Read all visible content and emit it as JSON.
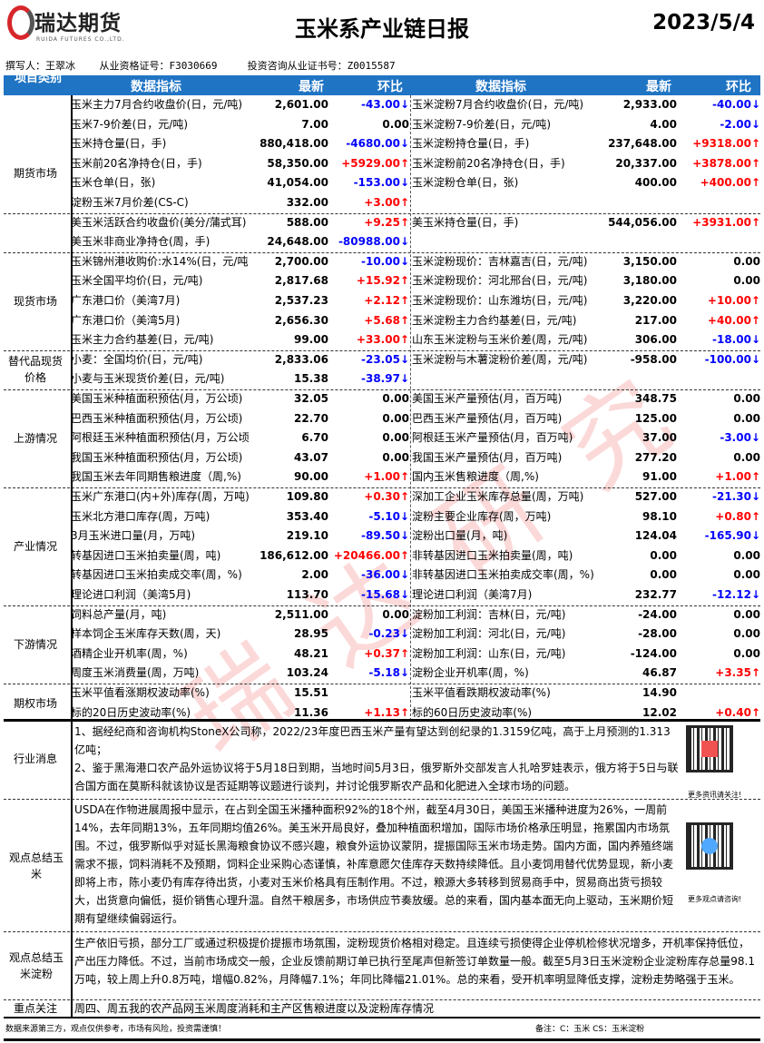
{
  "header": {
    "logo_cn": "瑞达期货",
    "logo_en": "RUIDA FUTURES CO.,LTD.",
    "title": "玉米系产业链日报",
    "date": "2023/5/4"
  },
  "author_line": "撰写人：王翠冰    从业资格证号：F3030669     投资咨询从业证书号：Z0015587",
  "table_header": {
    "category": "项目类别",
    "indicator": "数据指标",
    "latest": "最新",
    "change": "环比"
  },
  "colors": {
    "header_bg": "#1f74c4",
    "up": "#ff0000",
    "down": "#0000ff"
  },
  "sections": [
    {
      "category": "期货市场",
      "rows": [
        [
          "玉米主力7月合约收盘价(日，元/吨)",
          "2,601.00",
          "-43.00↓",
          "玉米淀粉7月合约收盘价(日，元/吨)",
          "2,933.00",
          "-40.00↓"
        ],
        [
          "玉米7-9价差(日，元/吨)",
          "7.00",
          "0.00",
          "玉米淀粉7-9价差(日，元/吨)",
          "4.00",
          "-2.00↓"
        ],
        [
          "玉米持仓量(日，手)",
          "880,418.00",
          "-4680.00↓",
          "玉米淀粉持仓量(日，手)",
          "237,648.00",
          "+9318.00↑"
        ],
        [
          "玉米前20名净持仓(日，手)",
          "58,350.00",
          "+5929.00↑",
          "玉米淀粉前20名净持仓(日，手)",
          "20,337.00",
          "+3878.00↑"
        ],
        [
          "玉米仓单(日，张)",
          "41,054.00",
          "-153.00↓",
          "玉米淀粉仓单(日，张)",
          "400.00",
          "+400.00↑"
        ],
        [
          "淀粉玉米7月价差(CS-C)",
          "332.00",
          "+3.00↑",
          "",
          "",
          ""
        ],
        [
          "美玉米活跃合约收盘价(美分/蒲式耳)",
          "588.00",
          "+9.25↑",
          "美玉米持仓量(日，手)",
          "544,056.00",
          "+3931.00↑"
        ],
        [
          "美玉米非商业净持仓(周，手)",
          "24,648.00",
          "-80988.00↓",
          "",
          "",
          ""
        ]
      ]
    },
    {
      "category": "现货市场",
      "rows": [
        [
          "玉米锦州港收购价:水14%(日，元/吨",
          "2,700.00",
          "-10.00↓",
          "玉米淀粉现价：吉林嘉吉(日，元/吨)",
          "3,150.00",
          "0.00"
        ],
        [
          "玉米全国平均价(日，元/吨)",
          "2,817.68",
          "+15.92↑",
          "玉米淀粉现价：河北邢台(日，元/吨)",
          "3,180.00",
          "0.00"
        ],
        [
          "广东港口价（美湾7月)",
          "2,537.23",
          "+2.12↑",
          "玉米淀粉现价：山东潍坊(日，元/吨)",
          "3,220.00",
          "+10.00↑"
        ],
        [
          "广东港口价（美湾5月)",
          "2,656.30",
          "+5.68↑",
          "玉米淀粉主力合约基差(日，元/吨)",
          "217.00",
          "+40.00↑"
        ],
        [
          "玉米主力合约基差(日，元/吨)",
          "99.00",
          "+33.00↑",
          "山东玉米淀粉与玉米价差(周，元/吨)",
          "306.00",
          "-18.00↓"
        ]
      ]
    },
    {
      "category": "替代品现货价格",
      "rows": [
        [
          "小麦：全国均价(日，元/吨)",
          "2,833.06",
          "-23.05↓",
          "玉米淀粉与木薯淀粉价差(周，元/吨)",
          "-958.00",
          "-100.00↓"
        ],
        [
          "小麦与玉米现货价差(日，元/吨)",
          "15.38",
          "-38.97↓",
          "",
          "",
          ""
        ]
      ]
    },
    {
      "category": "上游情况",
      "rows": [
        [
          "美国玉米种植面积预估(月，万公顷)",
          "32.05",
          "0.00",
          "美国玉米产量预估(月，百万吨)",
          "348.75",
          "0.00"
        ],
        [
          "巴西玉米种植面积预估(月，万公顷)",
          "22.70",
          "0.00",
          "巴西玉米产量预估(月，百万吨)",
          "125.00",
          "0.00"
        ],
        [
          "阿根廷玉米种植面积预估(月，万公顷",
          "6.70",
          "0.00",
          "阿根廷玉米产量预估(月，百万吨)",
          "37.00",
          "-3.00↓"
        ],
        [
          "我国玉米种植面积预估(月，万公顷)",
          "43.07",
          "0.00",
          "我国玉米产量预估(月，百万吨)",
          "277.20",
          "0.00"
        ],
        [
          "我国玉米去年同期售粮进度（周,%)",
          "90.00",
          "+1.00↑",
          "国内玉米售粮进度（周,%)",
          "91.00",
          "+1.00↑"
        ]
      ]
    },
    {
      "category": "产业情况",
      "rows": [
        [
          "玉米广东港口(内+外)库存(周，万吨)",
          "109.80",
          "+0.30↑",
          "深加工企业玉米库存总量(周，万吨)",
          "527.00",
          "-21.30↓"
        ],
        [
          "玉米北方港口库存(周，万吨)",
          "353.40",
          "-5.10↓",
          "淀粉主要企业库存(周，万吨)",
          "98.10",
          "+0.80↑"
        ],
        [
          "3月玉米进口量(月，万吨)",
          "219.10",
          "-89.50↓",
          "淀粉出口量(月，吨)",
          "124.04",
          "-165.90↓"
        ],
        [
          "转基因进口玉米拍卖量(周，吨)",
          "186,612.00",
          "+20466.00↑",
          "非转基因进口玉米拍卖量(周，吨)",
          "0.00",
          "0.00"
        ],
        [
          "转基因进口玉米拍卖成交率(周，%)",
          "2.00",
          "-36.00↓",
          "非转基因进口玉米拍卖成交率(周，%)",
          "0.00",
          "0.00"
        ],
        [
          "理论进口利润（美湾5月)",
          "113.70",
          "-15.68↓",
          "理论进口利润（美湾7月)",
          "232.77",
          "-12.12↓"
        ]
      ]
    },
    {
      "category": "下游情况",
      "rows": [
        [
          "饲料总产量(月，吨)",
          "2,511.00",
          "0.00",
          "淀粉加工利润：吉林(日，元/吨)",
          "-24.00",
          "0.00"
        ],
        [
          "样本饲企玉米库存天数(周，天)",
          "28.95",
          "-0.23↓",
          "淀粉加工利润：河北(日，元/吨)",
          "-28.00",
          "0.00"
        ],
        [
          "酒精企业开机率(周，%)",
          "48.21",
          "+0.37↑",
          "淀粉加工利润：山东(日，元/吨)",
          "-124.00",
          "0.00"
        ],
        [
          "周度玉米消费量(周，万吨)",
          "103.24",
          "-5.18↓",
          "淀粉企业开机率(周，%)",
          "46.87",
          "+3.35↑"
        ]
      ]
    },
    {
      "category": "期权市场",
      "rows": [
        [
          "玉米平值看涨期权波动率(%)",
          "15.51",
          "",
          "玉米平值看跌期权波动率(%)",
          "14.90",
          ""
        ],
        [
          "标的20日历史波动率(%)",
          "11.36",
          "+1.13↑",
          "标的60日历史波动率(%)",
          "12.02",
          "+0.40↑"
        ]
      ]
    }
  ],
  "news": {
    "label": "行业消息",
    "p1": "1、据经纪商和咨询机构StoneX公司称，2022/23年度巴西玉米产量有望达到创纪录的1.3159亿吨，高于上月预测的1.313亿吨；",
    "p2": "2、鉴于黑海港口农产品外运协议将于5月18日到期，当地时间5月3日，俄罗斯外交部发言人扎哈罗娃表示，俄方将于5日与联合国方面在莫斯科就该协议是否延期等议题进行谈判，并讨论俄罗斯农产品和化肥进入全球市场的问题。",
    "qr_caption": "更多资讯请关注!"
  },
  "corn_view": {
    "label": "观点总结玉米",
    "text": "USDA在作物进展周报中显示，在占到全国玉米播种面积92%的18个州，截至4月30日，美国玉米播种进度为26%，一周前14%，去年同期13%，五年同期均值26%。美玉米开局良好，叠加种植面积增加，国际市场价格承压明显，拖累国内市场氛围。不过，俄罗斯似乎对延长黑海粮食协议不感兴趣，粮食外运协议蒙阴，提振国际玉米市场走势。国内方面，国内养殖终端需求不振，饲料消耗不及预期，饲料企业采购心态谨慎，补库意愿欠佳库存天数持续降低。且小麦饲用替代优势显现，新小麦即将上市，陈小麦仍有库存待出货，小麦对玉米价格具有压制作用。不过，粮源大多转移到贸易商手中，贸易商出货亏损较大，出货意向偏低，挺价销售心理升温。自然干粮居多，市场供应节奏放缓。总的来看，国内基本面无向上驱动，玉米期价短期有望继续偏弱运行。",
    "qr_caption": "更多观点请咨询!"
  },
  "starch_view": {
    "label": "观点总结玉米淀粉",
    "text": "生产依旧亏损，部分工厂或通过积极提价提振市场氛围，淀粉现货价格相对稳定。且连续亏损使得企业停机检修状况增多，开机率保持低位，产出压力降低。不过，当前市场成交一般，企业反馈前期订单已执行至尾声但新签订单数量一般。截至5月3日玉米淀粉企业淀粉库存总量98.1万吨，较上周上升0.8万吨，增幅0.82%，月降幅7.1%；年同比降幅21.01%。总的来看，受开机率明显降低支撑，淀粉走势略强于玉米。"
  },
  "focus": {
    "label": "重点关注",
    "text": "周四、周五我的农产品网玉米周度消耗和主产区售粮进度以及淀粉库存情况"
  },
  "footer": {
    "disclaimer": "数据来源第三方，观点仅供参考，市场有风险，投资需谨慎！",
    "note": "备注：C：玉米    CS：玉米淀粉"
  },
  "watermark": "瑞达研究"
}
